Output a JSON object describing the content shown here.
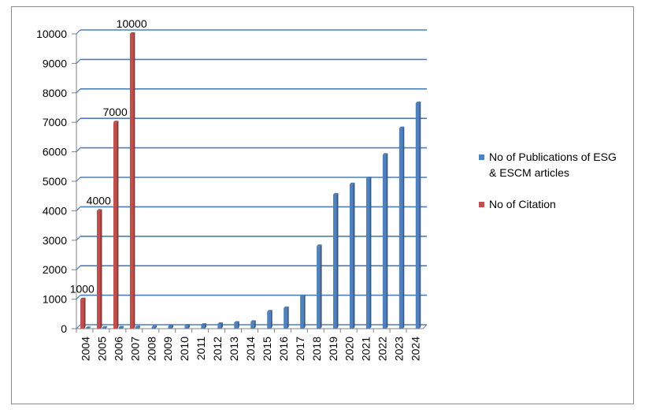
{
  "chart_data": {
    "type": "bar",
    "categories": [
      "2004",
      "2005",
      "2006",
      "2007",
      "2008",
      "2009",
      "2010",
      "2011",
      "2012",
      "2013",
      "2014",
      "2015",
      "2016",
      "2017",
      "2018",
      "2019",
      "2020",
      "2021",
      "2022",
      "2023",
      "2024"
    ],
    "series": [
      {
        "name": "No of Publications of ESG & ESCM articles",
        "color": "#4f81bd",
        "values": [
          20,
          30,
          40,
          50,
          60,
          80,
          100,
          130,
          160,
          200,
          230,
          580,
          700,
          1100,
          2800,
          4550,
          4900,
          5100,
          5900,
          6800,
          7650
        ]
      },
      {
        "name": "No of Citation",
        "color": "#c0504d",
        "values": [
          1000,
          4000,
          7000,
          10000,
          0,
          0,
          0,
          0,
          0,
          0,
          0,
          0,
          0,
          0,
          0,
          0,
          0,
          0,
          0,
          0,
          0
        ],
        "data_labels": [
          "1000",
          "4000",
          "7000",
          "10000"
        ]
      }
    ],
    "ylim": [
      0,
      10000
    ],
    "yticks": [
      "0",
      "1000",
      "2000",
      "3000",
      "4000",
      "5000",
      "6000",
      "7000",
      "8000",
      "9000",
      "10000"
    ],
    "grid": true,
    "legend": "right"
  }
}
